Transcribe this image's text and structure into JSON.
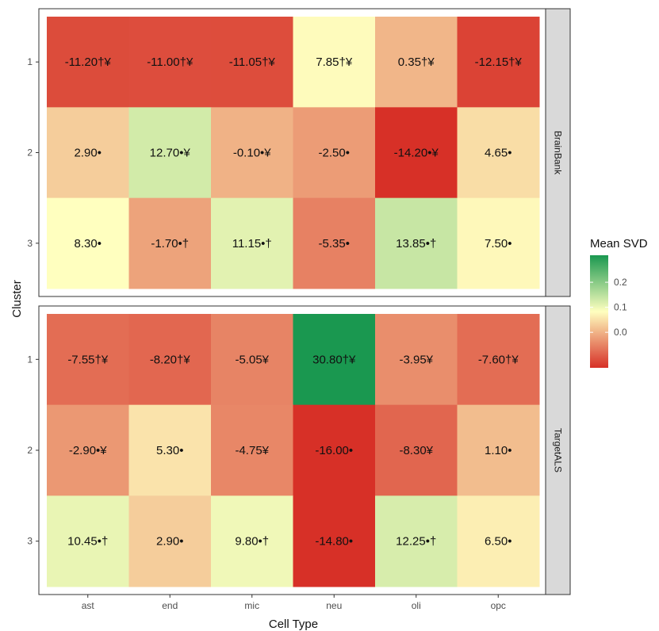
{
  "chart_data": {
    "type": "heatmap",
    "xlabel": "Cell Type",
    "ylabel": "Cluster",
    "x_categories": [
      "ast",
      "end",
      "mic",
      "neu",
      "oli",
      "opc"
    ],
    "y_categories": [
      "1",
      "2",
      "3"
    ],
    "facets": [
      {
        "name": "BrainBank",
        "rows": [
          {
            "cluster": "1",
            "labels": [
              "-11.20†¥",
              "-11.00†¥",
              "-11.05†¥",
              "7.85†¥",
              "0.35†¥",
              "-12.15†¥"
            ],
            "values": [
              -0.112,
              -0.11,
              -0.1105,
              0.0785,
              0.0035,
              -0.1215
            ]
          },
          {
            "cluster": "2",
            "labels": [
              "2.90•",
              "12.70•¥",
              "-0.10•¥",
              "-2.50•",
              "-14.20•¥",
              "4.65•"
            ],
            "values": [
              0.029,
              0.127,
              -0.001,
              -0.025,
              -0.142,
              0.0465
            ]
          },
          {
            "cluster": "3",
            "labels": [
              "8.30•",
              "-1.70•†",
              "11.15•†",
              "-5.35•",
              "13.85•†",
              "7.50•"
            ],
            "values": [
              0.083,
              -0.017,
              0.1115,
              -0.0535,
              0.1385,
              0.075
            ]
          }
        ]
      },
      {
        "name": "TargetALS",
        "rows": [
          {
            "cluster": "1",
            "labels": [
              "-7.55†¥",
              "-8.20†¥",
              "-5.05¥",
              "30.80†¥",
              "-3.95¥",
              "-7.60†¥"
            ],
            "values": [
              -0.0755,
              -0.082,
              -0.0505,
              0.308,
              -0.0395,
              -0.076
            ]
          },
          {
            "cluster": "2",
            "labels": [
              "-2.90•¥",
              "5.30•",
              "-4.75¥",
              "-16.00•",
              "-8.30¥",
              "1.10•"
            ],
            "values": [
              -0.029,
              0.053,
              -0.0475,
              -0.16,
              -0.083,
              0.011
            ]
          },
          {
            "cluster": "3",
            "labels": [
              "10.45•†",
              "2.90•",
              "9.80•†",
              "-14.80•",
              "12.25•†",
              "6.50•"
            ],
            "values": [
              0.1045,
              0.029,
              0.098,
              -0.148,
              0.1225,
              0.065
            ]
          }
        ]
      }
    ],
    "legend": {
      "title": "Mean SVD",
      "ticks": [
        0.2,
        0.1,
        0.0
      ],
      "tick_labels": [
        "0.2",
        "0.1",
        "0.0"
      ],
      "range": [
        -0.142,
        0.308
      ],
      "colors": {
        "low": "#d73027",
        "mid": "#ffffbf",
        "high": "#1a9850"
      }
    }
  }
}
